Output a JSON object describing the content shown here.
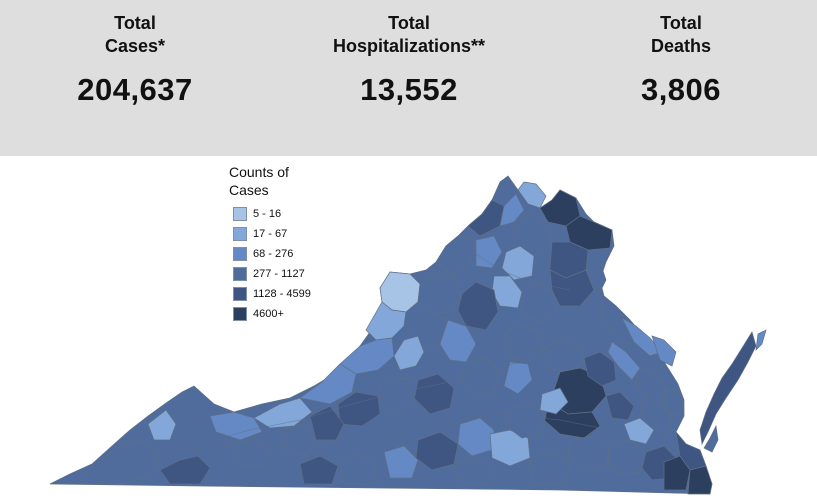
{
  "stats": {
    "cases": {
      "label": "Total\nCases*",
      "value": "204,637"
    },
    "hospitalizations": {
      "label": "Total\nHospitalizations**",
      "value": "13,552"
    },
    "deaths": {
      "label": "Total\nDeaths",
      "value": "3,806"
    }
  },
  "legend": {
    "title": "Counts of\nCases",
    "items": [
      {
        "label": "5 - 16",
        "color": "#a7c3e6"
      },
      {
        "label": "17 - 67",
        "color": "#82a7d8"
      },
      {
        "label": "68 - 276",
        "color": "#6489c4"
      },
      {
        "label": "277 - 1127",
        "color": "#4f6c9d"
      },
      {
        "label": "1128 - 4599",
        "color": "#3f5683"
      },
      {
        "label": "4600+",
        "color": "#2d3f5e"
      }
    ]
  },
  "map": {
    "region": "Virginia"
  }
}
